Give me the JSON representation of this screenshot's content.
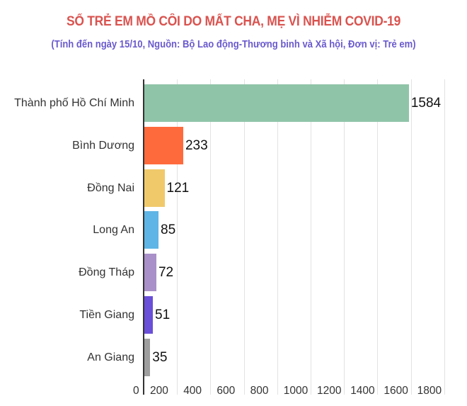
{
  "header": {
    "title": "SỐ TRẺ EM MỒ CÔI DO MẤT CHA, MẸ VÌ NHIỄM COVID-19",
    "subtitle": "(Tính đến ngày 15/10, Nguồn: Bộ Lao động-Thương binh và Xã hội, Đơn vị: Trẻ em)"
  },
  "colors": {
    "title": "#d9534f",
    "subtitle": "#6a5acd",
    "bars": [
      "#8fc4a8",
      "#ff6a3d",
      "#f0c96b",
      "#5fb5e5",
      "#a990c8",
      "#6a4fd8",
      "#9e9e9e"
    ]
  },
  "chart_data": {
    "type": "bar",
    "orientation": "horizontal",
    "title": "SỐ TRẺ EM MỒ CÔI DO MẤT CHA, MẸ VÌ NHIỄM COVID-19",
    "subtitle": "(Tính đến ngày 15/10, Nguồn: Bộ Lao động-Thương binh và Xã hội, Đơn vị: Trẻ em)",
    "categories": [
      "Thành phố Hồ Chí Minh",
      "Bình Dương",
      "Đồng Nai",
      "Long An",
      "Đồng Tháp",
      "Tiền Giang",
      "An Giang"
    ],
    "values": [
      1584,
      233,
      121,
      85,
      72,
      51,
      35
    ],
    "value_labels": [
      "1584",
      "233",
      "121",
      "85",
      "72",
      "51",
      "35"
    ],
    "xlabel": "",
    "ylabel": "",
    "xlim": [
      0,
      1800
    ],
    "xticks": [
      "0",
      "200",
      "400",
      "600",
      "800",
      "1000",
      "1200",
      "1400",
      "1600",
      "1800"
    ],
    "grid": true,
    "legend": "none"
  }
}
